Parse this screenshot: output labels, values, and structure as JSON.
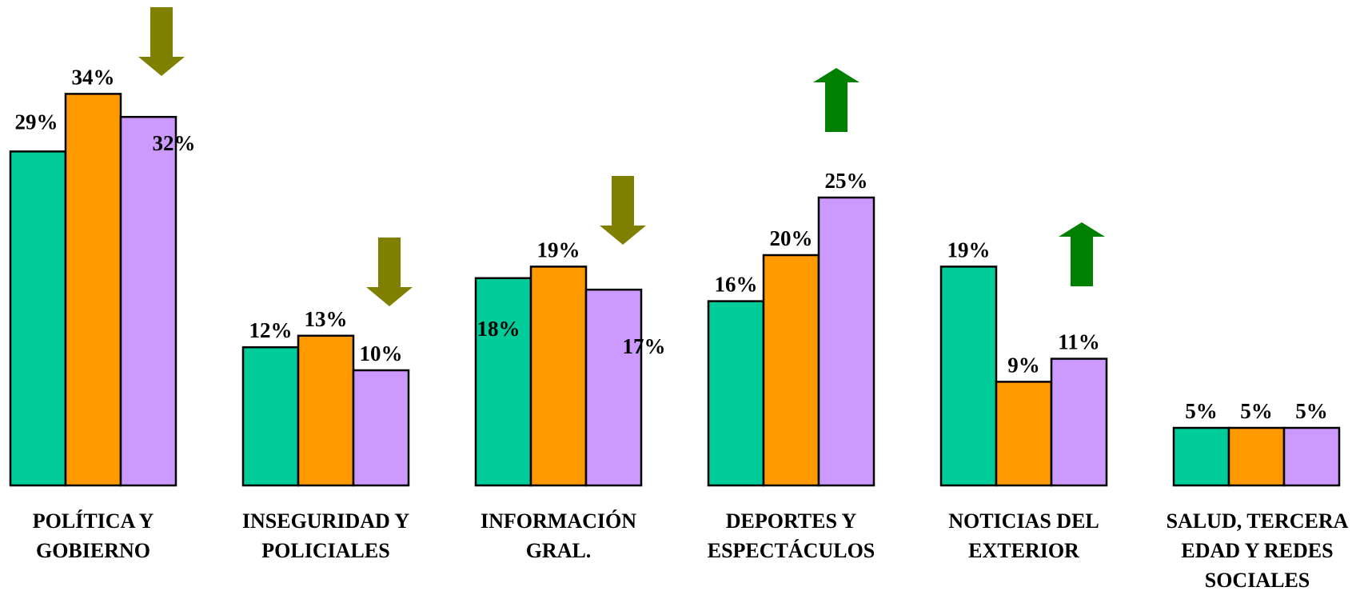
{
  "chart_data": {
    "type": "bar",
    "categories": [
      [
        "POLÍTICA Y",
        "GOBIERNO"
      ],
      [
        "INSEGURIDAD Y",
        "POLICIALES"
      ],
      [
        "INFORMACIÓN",
        "GRAL."
      ],
      [
        "DEPORTES Y",
        "ESPECTÁCULOS"
      ],
      [
        "NOTICIAS DEL",
        "EXTERIOR"
      ],
      [
        "SALUD, TERCERA",
        "EDAD Y REDES",
        "SOCIALES"
      ]
    ],
    "series": [
      {
        "color": "#00cc99",
        "values": [
          29,
          12,
          18,
          16,
          19,
          5
        ]
      },
      {
        "color": "#ff9900",
        "values": [
          34,
          13,
          19,
          20,
          9,
          5
        ]
      },
      {
        "color": "#cc99ff",
        "values": [
          32,
          10,
          17,
          25,
          11,
          5
        ]
      }
    ],
    "value_labels": [
      [
        "29%",
        "12%",
        "18%",
        "16%",
        "19%",
        "5%"
      ],
      [
        "34%",
        "13%",
        "19%",
        "20%",
        "9%",
        "5%"
      ],
      [
        "32%",
        "10%",
        "17%",
        "25%",
        "11%",
        "5%"
      ]
    ],
    "trend_arrows": [
      {
        "category_index": 0,
        "direction": "down",
        "color": "#808000"
      },
      {
        "category_index": 1,
        "direction": "down",
        "color": "#808000"
      },
      {
        "category_index": 2,
        "direction": "down",
        "color": "#808000"
      },
      {
        "category_index": 3,
        "direction": "up",
        "color": "#008000"
      },
      {
        "category_index": 4,
        "direction": "up",
        "color": "#008000"
      }
    ],
    "ylim": [
      0,
      34
    ],
    "grid": false,
    "legend": "none",
    "title": "",
    "xlabel": "",
    "ylabel": ""
  }
}
